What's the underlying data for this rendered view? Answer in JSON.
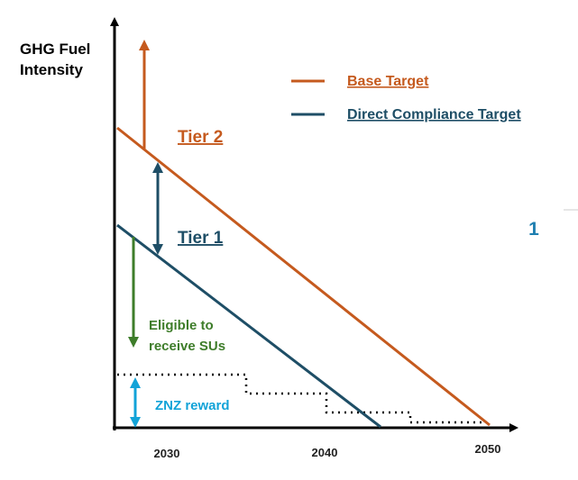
{
  "axis": {
    "y_label": [
      "GHG Fuel",
      "Intensity"
    ],
    "x_labels": [
      2030,
      2040,
      2050
    ]
  },
  "legend": [
    "Base Target",
    "Direct Compliance Target"
  ],
  "annotations": {
    "tier2": "Tier 2",
    "tier1": "Tier 1",
    "eligible": [
      "Eligible to",
      "receive SUs"
    ],
    "znz": "ZNZ reward"
  },
  "page_number": "1"
}
